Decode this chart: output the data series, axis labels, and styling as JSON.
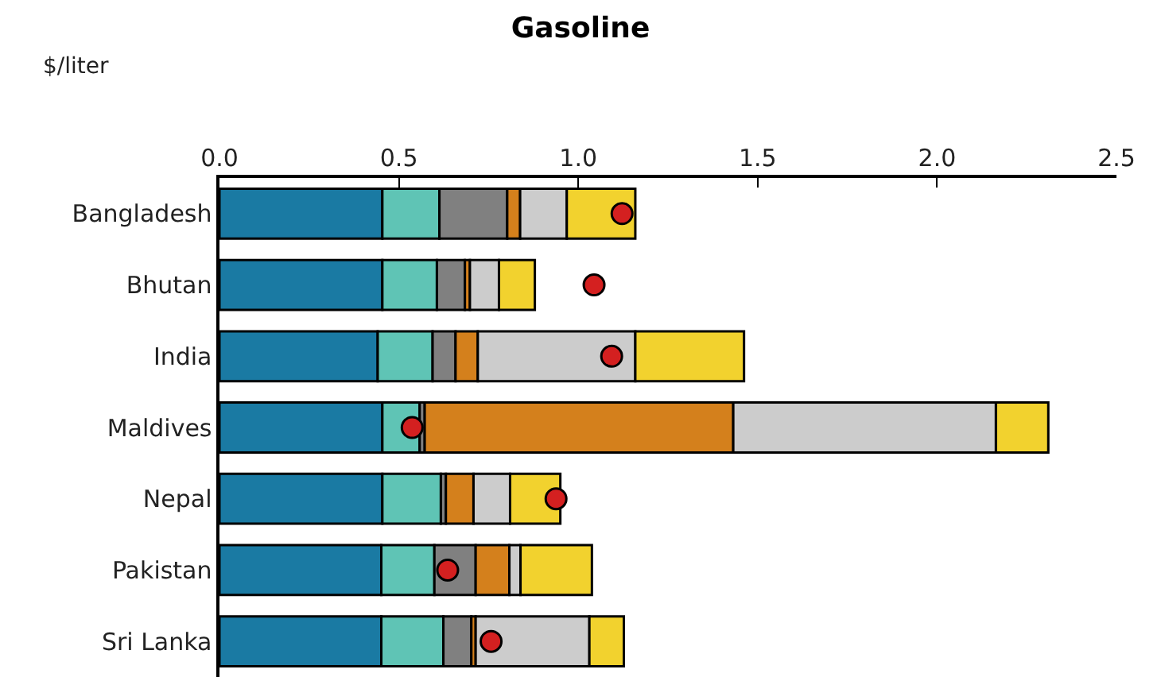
{
  "chart_data": {
    "type": "bar",
    "title": "Gasoline",
    "xlabel": "$/liter",
    "orientation": "horizontal",
    "stacked": true,
    "categories": [
      "Bangladesh",
      "Bhutan",
      "India",
      "Maldives",
      "Nepal",
      "Pakistan",
      "Sri Lanka"
    ],
    "xlim": [
      0,
      2.5
    ],
    "xticks": [
      {
        "value": 0,
        "label": "0.0"
      },
      0.5,
      {
        "value": 1,
        "label": "1.0"
      },
      1.5,
      {
        "value": 2,
        "label": "2.0"
      },
      2.5
    ],
    "series": [
      {
        "color": "#1a7aa3",
        "values": [
          0.454,
          0.454,
          0.441,
          0.454,
          0.454,
          0.451,
          0.451
        ]
      },
      {
        "color": "#5fc4b5",
        "values": [
          0.159,
          0.152,
          0.153,
          0.104,
          0.163,
          0.148,
          0.173
        ]
      },
      {
        "color": "#808080",
        "values": [
          0.189,
          0.078,
          0.064,
          0.014,
          0.014,
          0.115,
          0.078
        ]
      },
      {
        "color": "#d4801c",
        "values": [
          0.036,
          0.014,
          0.062,
          0.86,
          0.077,
          0.094,
          0.012
        ]
      },
      {
        "color": "#cccccc",
        "values": [
          0.13,
          0.081,
          0.439,
          0.732,
          0.102,
          0.031,
          0.317
        ]
      },
      {
        "color": "#f2d22e",
        "values": [
          0.191,
          0.1,
          0.303,
          0.146,
          0.14,
          0.199,
          0.096
        ]
      },
      {
        "type": "scatter",
        "color": "#d42020",
        "marker": "circle",
        "values": [
          1.122,
          1.044,
          1.093,
          0.537,
          0.938,
          0.636,
          0.757
        ]
      }
    ]
  }
}
